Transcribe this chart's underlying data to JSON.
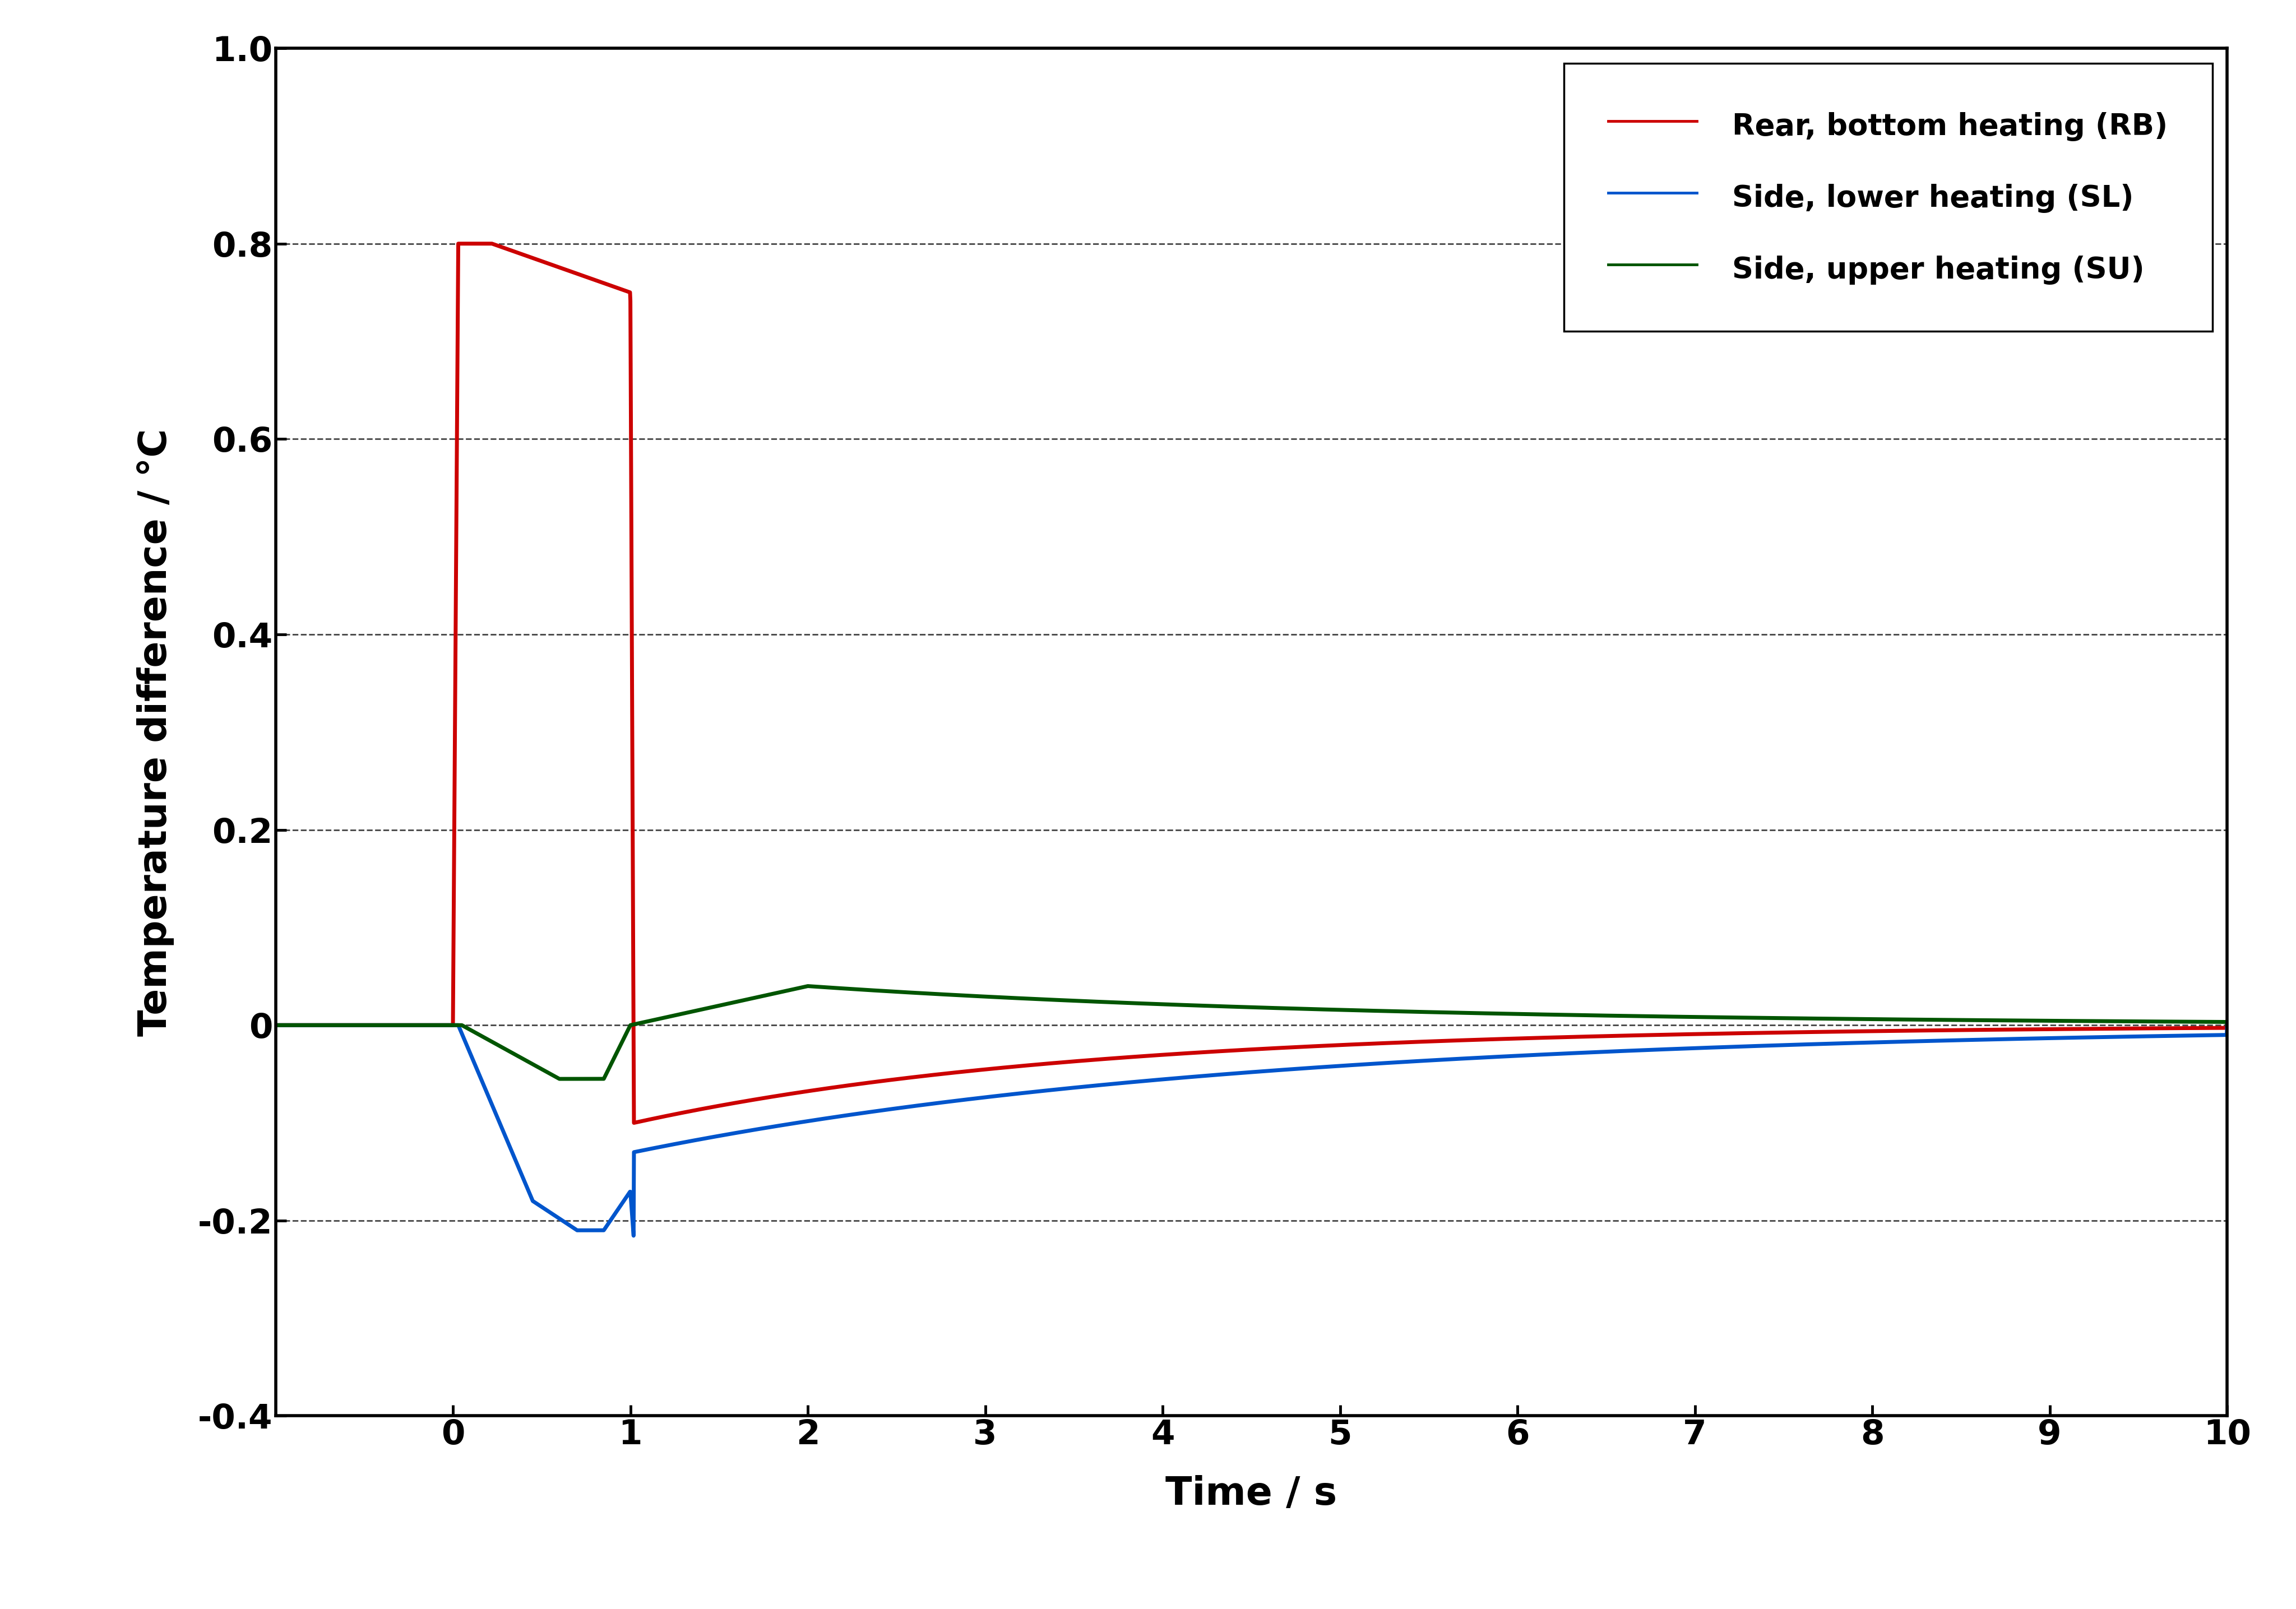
{
  "title": "",
  "xlabel": "Time / s",
  "ylabel": "Temperature difference / °C",
  "xlim": [
    -1,
    10
  ],
  "ylim": [
    -0.4,
    1.0
  ],
  "xticks": [
    0,
    1,
    2,
    3,
    4,
    5,
    6,
    7,
    8,
    9,
    10
  ],
  "yticks": [
    -0.4,
    -0.2,
    0.0,
    0.2,
    0.4,
    0.6,
    0.8,
    1.0
  ],
  "grid_yticks": [
    -0.2,
    0.0,
    0.2,
    0.4,
    0.6,
    0.8
  ],
  "legend_labels": [
    "Rear, bottom heating (RB)",
    "Side, lower heating (SL)",
    "Side, upper heating (SU)"
  ],
  "legend_colors": [
    "#cc0000",
    "#0055cc",
    "#005500"
  ],
  "line_width": 5.0,
  "background_color": "#ffffff",
  "grid_color": "#444444",
  "grid_linestyle": "--",
  "grid_linewidth": 2.0,
  "spine_linewidth": 4.0,
  "tick_labelsize": 44,
  "axis_labelsize": 50,
  "legend_fontsize": 38
}
